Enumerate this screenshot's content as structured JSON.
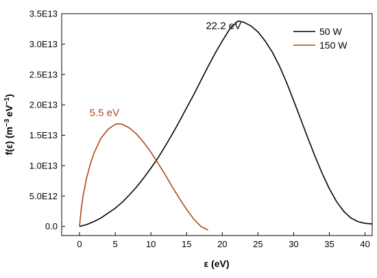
{
  "chart_data": {
    "type": "line",
    "xlabel": "ε (eV)",
    "ylabel_main": "f(ε) (m",
    "ylabel_sup1": "−3",
    "ylabel_mid": "eV",
    "ylabel_sup2": "−1",
    "ylabel_end": ")",
    "xlim": [
      -2.5,
      41
    ],
    "ylim": [
      -1500000000000.0,
      35000000000000.0
    ],
    "xticks": [
      0,
      5,
      10,
      15,
      20,
      25,
      30,
      35,
      40
    ],
    "xtick_labels": [
      "0",
      "5",
      "10",
      "15",
      "20",
      "25",
      "30",
      "35",
      "40"
    ],
    "yticks": [
      0,
      5000000000000.0,
      10000000000000.0,
      15000000000000.0,
      20000000000000.0,
      25000000000000.0,
      30000000000000.0,
      35000000000000.0
    ],
    "ytick_labels": [
      "0.0",
      "5.0E12",
      "1.0E13",
      "1.5E13",
      "2.0E13",
      "2.5E13",
      "3.0E13",
      "3.5E13"
    ],
    "legend_position": "top-right",
    "grid": false,
    "series": [
      {
        "name": "50 W",
        "color": "#000000",
        "x": [
          0,
          1,
          2,
          3,
          4,
          5,
          6,
          7,
          8,
          9,
          10,
          11,
          12,
          13,
          14,
          15,
          16,
          17,
          18,
          19,
          20,
          21,
          22.2,
          23,
          24,
          25,
          26,
          27,
          28,
          29,
          30,
          31,
          32,
          33,
          34,
          35,
          36,
          37,
          38,
          39,
          40,
          41
        ],
        "y": [
          0,
          300000000000.0,
          800000000000.0,
          1400000000000.0,
          2200000000000.0,
          3000000000000.0,
          4000000000000.0,
          5200000000000.0,
          6500000000000.0,
          8000000000000.0,
          9600000000000.0,
          11300000000000.0,
          13200000000000.0,
          15200000000000.0,
          17300000000000.0,
          19500000000000.0,
          21700000000000.0,
          24000000000000.0,
          26300000000000.0,
          28500000000000.0,
          30500000000000.0,
          32400000000000.0,
          33800000000000.0,
          33600000000000.0,
          33000000000000.0,
          32000000000000.0,
          30500000000000.0,
          28700000000000.0,
          26400000000000.0,
          23700000000000.0,
          20700000000000.0,
          17600000000000.0,
          14500000000000.0,
          11500000000000.0,
          8700000000000.0,
          6200000000000.0,
          4100000000000.0,
          2500000000000.0,
          1400000000000.0,
          800000000000.0,
          500000000000.0,
          400000000000.0
        ]
      },
      {
        "name": "150 W",
        "color": "#b0451a",
        "x": [
          0,
          0.25,
          0.5,
          1,
          1.5,
          2,
          3,
          4,
          5,
          5.5,
          6,
          7,
          8,
          9,
          10,
          11,
          12,
          13,
          14,
          15,
          16,
          17,
          18
        ],
        "y": [
          0,
          3000000000000.0,
          5000000000000.0,
          8000000000000.0,
          10200000000000.0,
          12000000000000.0,
          14500000000000.0,
          16000000000000.0,
          16800000000000.0,
          16900000000000.0,
          16800000000000.0,
          16200000000000.0,
          15200000000000.0,
          13800000000000.0,
          12200000000000.0,
          10400000000000.0,
          8500000000000.0,
          6500000000000.0,
          4600000000000.0,
          2800000000000.0,
          1200000000000.0,
          0,
          -600000000000.0
        ]
      }
    ],
    "annotations": [
      {
        "text": "22.2 eV",
        "x": 17.7,
        "y": 33800000000000.0,
        "color": "#000000"
      },
      {
        "text": "5.5 eV",
        "x": 1.4,
        "y": 19500000000000.0,
        "color": "#b0451a"
      }
    ]
  }
}
